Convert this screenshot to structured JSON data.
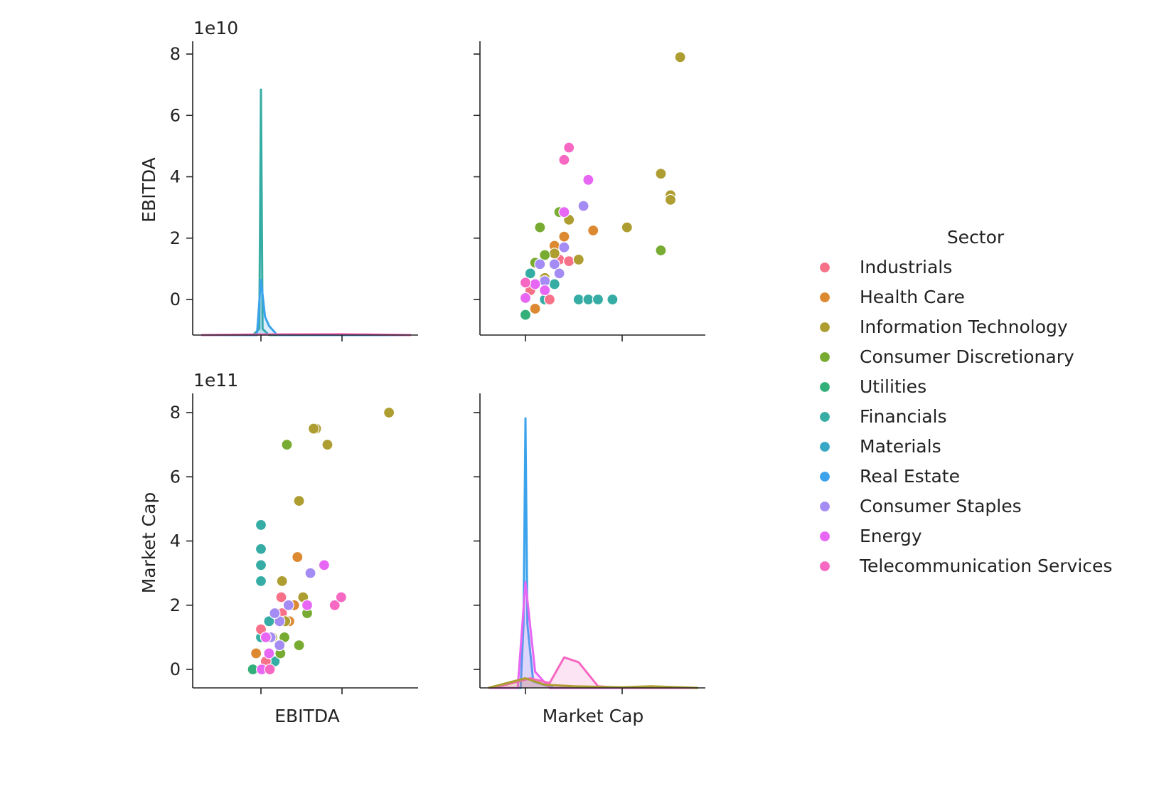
{
  "chart_data": {
    "type": "scatter",
    "subtype": "pairplot",
    "hue_title": "Sector",
    "variables": [
      "EBITDA",
      "Market Cap"
    ],
    "axis_labels": {
      "EBITDA": "EBITDA",
      "Market Cap": "Market Cap"
    },
    "offset_labels": {
      "EBITDA": "1e10",
      "Market Cap": "1e11"
    },
    "yticks": {
      "EBITDA": {
        "values": [
          0,
          2,
          4,
          6,
          8
        ],
        "labels": [
          "0",
          "2",
          "4",
          "6",
          "8"
        ],
        "scale": 10000000000,
        "range": [
          -1.15,
          8.4
        ]
      },
      "Market Cap": {
        "values": [
          0,
          2,
          4,
          6,
          8
        ],
        "labels": [
          "0",
          "2",
          "4",
          "6",
          "8"
        ],
        "scale": 100000000000,
        "range": [
          -0.55,
          8.6
        ]
      }
    },
    "diag_note": "diagonal panels show per-sector KDE density curves",
    "legend_position": "right",
    "categories": [
      {
        "name": "Industrials",
        "color": "#f77189"
      },
      {
        "name": "Health Care",
        "color": "#dc8932"
      },
      {
        "name": "Information Technology",
        "color": "#ae9d31"
      },
      {
        "name": "Consumer Discretionary",
        "color": "#77ab31"
      },
      {
        "name": "Utilities",
        "color": "#33b07a"
      },
      {
        "name": "Financials",
        "color": "#36ada4"
      },
      {
        "name": "Materials",
        "color": "#38a9c5"
      },
      {
        "name": "Real Estate",
        "color": "#3ba3ec"
      },
      {
        "name": "Consumer Staples",
        "color": "#a48cf4"
      },
      {
        "name": "Energy",
        "color": "#e866f4"
      },
      {
        "name": "Telecommunication Services",
        "color": "#f668c2"
      }
    ],
    "points": [
      {
        "s": 4,
        "x": 0.0,
        "y": -0.5
      },
      {
        "s": 5,
        "x": 0.2,
        "y": 0.0
      },
      {
        "s": 5,
        "x": 0.55,
        "y": 0.0
      },
      {
        "s": 5,
        "x": 0.65,
        "y": 0.0
      },
      {
        "s": 5,
        "x": 0.75,
        "y": 0.0
      },
      {
        "s": 5,
        "x": 0.9,
        "y": 0.0
      },
      {
        "s": 5,
        "x": 0.3,
        "y": 0.5
      },
      {
        "s": 5,
        "x": 0.05,
        "y": 0.85
      },
      {
        "s": 1,
        "x": 0.1,
        "y": -0.3
      },
      {
        "s": 1,
        "x": 0.3,
        "y": 1.75
      },
      {
        "s": 1,
        "x": 0.4,
        "y": 2.05
      },
      {
        "s": 1,
        "x": 0.7,
        "y": 2.25
      },
      {
        "s": 0,
        "x": 0.05,
        "y": 0.3
      },
      {
        "s": 0,
        "x": 0.25,
        "y": 0.0
      },
      {
        "s": 0,
        "x": 0.35,
        "y": 1.3
      },
      {
        "s": 0,
        "x": 0.45,
        "y": 1.25
      },
      {
        "s": 2,
        "x": 0.2,
        "y": 0.7
      },
      {
        "s": 2,
        "x": 0.3,
        "y": 1.5
      },
      {
        "s": 2,
        "x": 0.45,
        "y": 2.6
      },
      {
        "s": 2,
        "x": 0.55,
        "y": 1.3
      },
      {
        "s": 2,
        "x": 1.05,
        "y": 2.35
      },
      {
        "s": 2,
        "x": 1.4,
        "y": 4.1
      },
      {
        "s": 2,
        "x": 1.5,
        "y": 3.4
      },
      {
        "s": 2,
        "x": 1.5,
        "y": 3.25
      },
      {
        "s": 2,
        "x": 1.6,
        "y": 7.9
      },
      {
        "s": 3,
        "x": 0.1,
        "y": 1.2
      },
      {
        "s": 3,
        "x": 0.15,
        "y": 2.35
      },
      {
        "s": 3,
        "x": 0.35,
        "y": 2.85
      },
      {
        "s": 3,
        "x": 0.2,
        "y": 1.45
      },
      {
        "s": 3,
        "x": 1.4,
        "y": 1.6
      },
      {
        "s": 8,
        "x": 0.15,
        "y": 1.15
      },
      {
        "s": 8,
        "x": 0.3,
        "y": 1.15
      },
      {
        "s": 8,
        "x": 0.4,
        "y": 1.7
      },
      {
        "s": 8,
        "x": 0.35,
        "y": 0.85
      },
      {
        "s": 8,
        "x": 0.6,
        "y": 3.05
      },
      {
        "s": 8,
        "x": 0.2,
        "y": 0.6
      },
      {
        "s": 9,
        "x": 0.4,
        "y": 2.85
      },
      {
        "s": 9,
        "x": 0.65,
        "y": 3.9
      },
      {
        "s": 9,
        "x": 0.2,
        "y": 0.3
      },
      {
        "s": 9,
        "x": 0.0,
        "y": 0.05
      },
      {
        "s": 9,
        "x": 0.1,
        "y": 0.5
      },
      {
        "s": 10,
        "x": 0.0,
        "y": 0.55
      },
      {
        "s": 10,
        "x": 0.4,
        "y": 4.55
      },
      {
        "s": 10,
        "x": 0.45,
        "y": 4.95
      }
    ],
    "kde": [
      {
        "var": "EBITDA",
        "s": 5,
        "curve": [
          [
            -1.0,
            0
          ],
          [
            -0.1,
            0
          ],
          [
            -0.02,
            0.2
          ],
          [
            0.0,
            8.0
          ],
          [
            0.02,
            0.2
          ],
          [
            0.1,
            0
          ],
          [
            2.0,
            0
          ]
        ]
      },
      {
        "var": "EBITDA",
        "s": 7,
        "curve": [
          [
            -1.0,
            0
          ],
          [
            -0.05,
            0
          ],
          [
            0.0,
            1.8
          ],
          [
            0.05,
            0.6
          ],
          [
            0.1,
            0.3
          ],
          [
            0.2,
            0
          ],
          [
            2.0,
            0
          ]
        ]
      },
      {
        "var": "EBITDA",
        "s": 10,
        "curve": [
          [
            -1.0,
            0
          ],
          [
            0.0,
            0.02
          ],
          [
            1.0,
            0.03
          ],
          [
            2.0,
            0
          ]
        ]
      },
      {
        "var": "Market Cap",
        "s": 7,
        "curve": [
          [
            -0.5,
            0
          ],
          [
            -0.05,
            0
          ],
          [
            -0.02,
            2.0
          ],
          [
            0.0,
            8.4
          ],
          [
            0.02,
            2.0
          ],
          [
            0.08,
            0.2
          ],
          [
            0.3,
            0
          ],
          [
            2.0,
            0
          ]
        ]
      },
      {
        "var": "Market Cap",
        "s": 9,
        "curve": [
          [
            -0.5,
            0
          ],
          [
            -0.08,
            0
          ],
          [
            0.0,
            3.3
          ],
          [
            0.1,
            0.5
          ],
          [
            0.25,
            0
          ],
          [
            2.0,
            0
          ]
        ]
      },
      {
        "var": "Market Cap",
        "s": 10,
        "curve": [
          [
            -0.5,
            0
          ],
          [
            -0.2,
            0.1
          ],
          [
            0.05,
            0.3
          ],
          [
            0.25,
            0.15
          ],
          [
            0.4,
            0.95
          ],
          [
            0.55,
            0.8
          ],
          [
            0.75,
            0.05
          ],
          [
            1.0,
            0
          ],
          [
            2.0,
            0
          ]
        ]
      },
      {
        "var": "Market Cap",
        "s": 2,
        "curve": [
          [
            -0.5,
            0
          ],
          [
            0.0,
            0.3
          ],
          [
            0.2,
            0.1
          ],
          [
            0.5,
            0.05
          ],
          [
            1.0,
            0.02
          ],
          [
            1.3,
            0.05
          ],
          [
            1.6,
            0.02
          ],
          [
            2.0,
            0
          ]
        ]
      }
    ]
  }
}
